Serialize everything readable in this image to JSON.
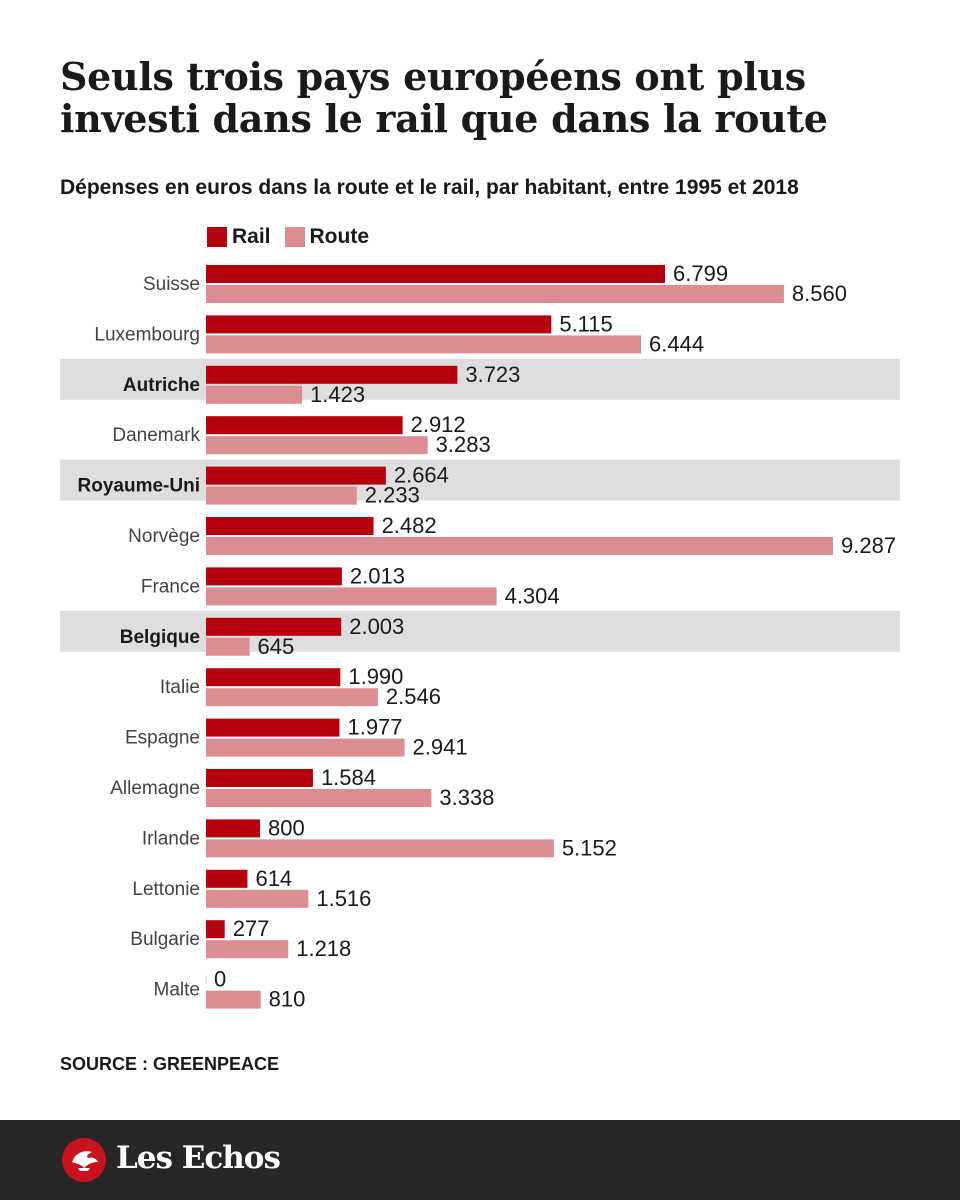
{
  "title": "Seuls trois pays européens ont plus investi dans le rail que dans la route",
  "subtitle": "Dépenses en euros dans la route et le rail, par habitant, entre 1995 et 2018",
  "source": "SOURCE : GREENPEACE",
  "brand": "Les Echos",
  "colors": {
    "rail": "#b5000d",
    "route": "#dc8d93",
    "highlight": "#dedede",
    "footer": "#262626",
    "brand_red": "#c8141e"
  },
  "chart_data": {
    "type": "bar",
    "orientation": "horizontal",
    "title": "Seuls trois pays européens ont plus investi dans le rail que dans la route",
    "subtitle": "Dépenses en euros dans la route et le rail, par habitant, entre 1995 et 2018",
    "xlabel": "",
    "ylabel": "",
    "xlim": [
      0,
      9287
    ],
    "grid": false,
    "legend_position": "top-left",
    "categories": [
      "Suisse",
      "Luxembourg",
      "Autriche",
      "Danemark",
      "Royaume-Uni",
      "Norvège",
      "France",
      "Belgique",
      "Italie",
      "Espagne",
      "Allemagne",
      "Irlande",
      "Lettonie",
      "Bulgarie",
      "Malte"
    ],
    "highlighted": [
      "Autriche",
      "Royaume-Uni",
      "Belgique"
    ],
    "series": [
      {
        "name": "Rail",
        "values": [
          6799,
          5115,
          3723,
          2912,
          2664,
          2482,
          2013,
          2003,
          1990,
          1977,
          1584,
          800,
          614,
          277,
          0
        ],
        "labels": [
          "6.799",
          "5.115",
          "3.723",
          "2.912",
          "2.664",
          "2.482",
          "2.013",
          "2.003",
          "1.990",
          "1.977",
          "1.584",
          "800",
          "614",
          "277",
          "0"
        ]
      },
      {
        "name": "Route",
        "values": [
          8560,
          6444,
          1423,
          3283,
          2233,
          9287,
          4304,
          645,
          2546,
          2941,
          3338,
          5152,
          1516,
          1218,
          810
        ],
        "labels": [
          "8.560",
          "6.444",
          "1.423",
          "3.283",
          "2.233",
          "9.287",
          "4.304",
          "645",
          "2.546",
          "2.941",
          "3.338",
          "5.152",
          "1.516",
          "1.218",
          "810"
        ]
      }
    ]
  }
}
